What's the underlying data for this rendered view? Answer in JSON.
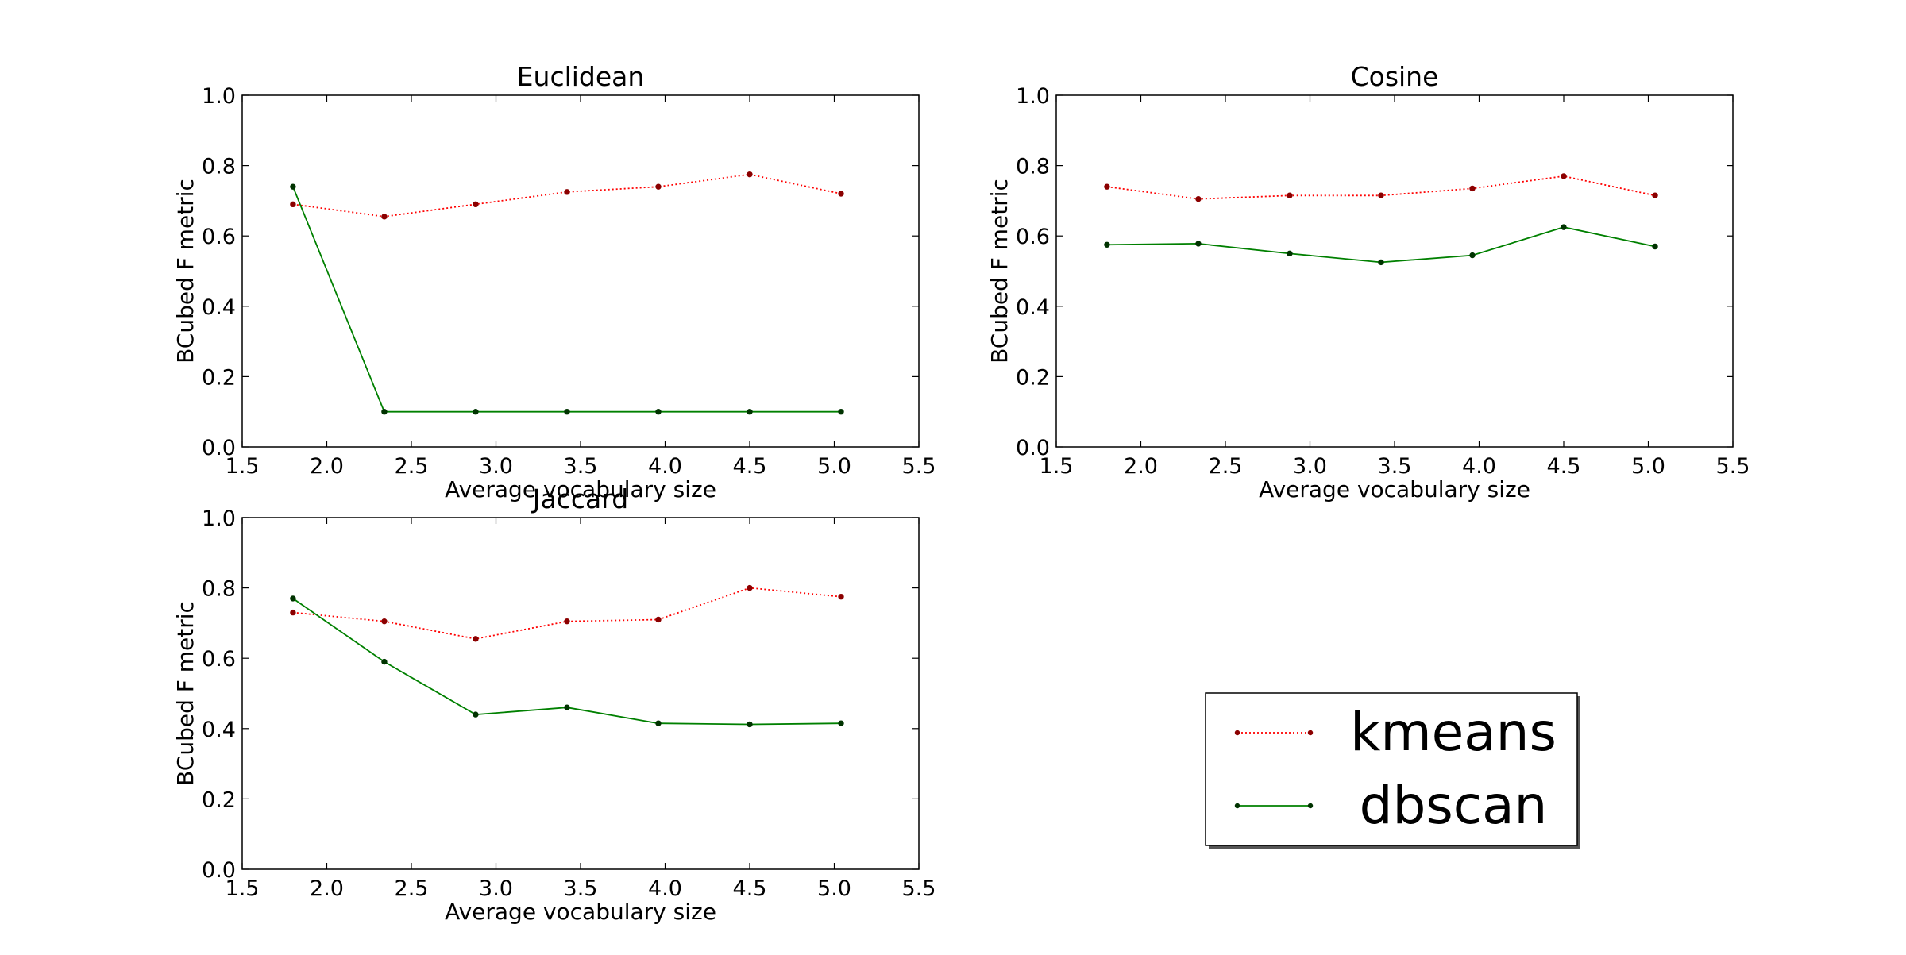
{
  "chart_data": [
    {
      "type": "line",
      "title": "Euclidean",
      "xlabel": "Average vocabulary size",
      "ylabel": "BCubed F metric",
      "xlim": [
        1.5,
        5.5
      ],
      "ylim": [
        0.0,
        1.0
      ],
      "xticks": [
        "1.5",
        "2.0",
        "2.5",
        "3.0",
        "3.5",
        "4.0",
        "4.5",
        "5.0",
        "5.5"
      ],
      "yticks": [
        "0.0",
        "0.2",
        "0.4",
        "0.6",
        "0.8",
        "1.0"
      ],
      "grid": false,
      "x": [
        1.8,
        2.34,
        2.88,
        3.42,
        3.96,
        4.5,
        5.04
      ],
      "series": [
        {
          "name": "kmeans",
          "values": [
            0.69,
            0.655,
            0.69,
            0.725,
            0.74,
            0.775,
            0.72
          ]
        },
        {
          "name": "dbscan",
          "values": [
            0.74,
            0.1,
            0.1,
            0.1,
            0.1,
            0.1,
            0.1
          ]
        }
      ]
    },
    {
      "type": "line",
      "title": "Cosine",
      "xlabel": "Average vocabulary size",
      "ylabel": "BCubed F metric",
      "xlim": [
        1.5,
        5.5
      ],
      "ylim": [
        0.0,
        1.0
      ],
      "xticks": [
        "1.5",
        "2.0",
        "2.5",
        "3.0",
        "3.5",
        "4.0",
        "4.5",
        "5.0",
        "5.5"
      ],
      "yticks": [
        "0.0",
        "0.2",
        "0.4",
        "0.6",
        "0.8",
        "1.0"
      ],
      "grid": false,
      "x": [
        1.8,
        2.34,
        2.88,
        3.42,
        3.96,
        4.5,
        5.04
      ],
      "series": [
        {
          "name": "kmeans",
          "values": [
            0.74,
            0.705,
            0.715,
            0.715,
            0.735,
            0.77,
            0.715
          ]
        },
        {
          "name": "dbscan",
          "values": [
            0.575,
            0.578,
            0.55,
            0.525,
            0.545,
            0.625,
            0.57
          ]
        }
      ]
    },
    {
      "type": "line",
      "title": "Jaccard",
      "xlabel": "Average vocabulary size",
      "ylabel": "BCubed F metric",
      "xlim": [
        1.5,
        5.5
      ],
      "ylim": [
        0.0,
        1.0
      ],
      "xticks": [
        "1.5",
        "2.0",
        "2.5",
        "3.0",
        "3.5",
        "4.0",
        "4.5",
        "5.0",
        "5.5"
      ],
      "yticks": [
        "0.0",
        "0.2",
        "0.4",
        "0.6",
        "0.8",
        "1.0"
      ],
      "grid": false,
      "x": [
        1.8,
        2.34,
        2.88,
        3.42,
        3.96,
        4.5,
        5.04
      ],
      "series": [
        {
          "name": "kmeans",
          "values": [
            0.73,
            0.705,
            0.655,
            0.705,
            0.71,
            0.8,
            0.775
          ]
        },
        {
          "name": "dbscan",
          "values": [
            0.77,
            0.59,
            0.44,
            0.46,
            0.415,
            0.412,
            0.415
          ]
        }
      ]
    }
  ],
  "legend": {
    "placement": "lower-right",
    "items": [
      {
        "label": "kmeans",
        "color": "#ff0000",
        "marker_color": "#8b0000",
        "style": "dotted"
      },
      {
        "label": "dbscan",
        "color": "#008000",
        "marker_color": "#003300",
        "style": "solid"
      }
    ]
  },
  "series_styles": {
    "kmeans": {
      "color": "#ff0000",
      "marker_color": "#8b0000",
      "dash": "dotted"
    },
    "dbscan": {
      "color": "#008000",
      "marker_color": "#003300",
      "dash": "solid"
    }
  }
}
